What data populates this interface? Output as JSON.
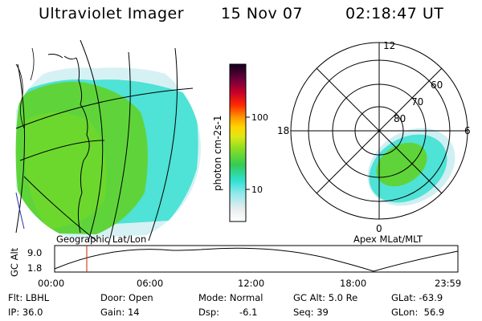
{
  "header": {
    "title": "Ultraviolet Imager",
    "date": "15 Nov 07",
    "time": "02:18:47 UT"
  },
  "colorbar": {
    "unit": "photon cm-2s-1",
    "ticks": [
      "100",
      "10"
    ]
  },
  "left_panel": {
    "label": "Geographic Lat/Lon"
  },
  "right_panel": {
    "label": "Apex MLat/MLT",
    "mlt_labels": {
      "top": "12",
      "left": "18",
      "right": "6",
      "bottom": "0"
    },
    "lat_labels": [
      "60",
      "70",
      "80"
    ]
  },
  "altitude_plot": {
    "ylabel": "GC Alt",
    "yticks": [
      "9.0",
      "1.8"
    ],
    "xticks": [
      "00:00",
      "06:00",
      "12:00",
      "18:00",
      "23:59"
    ]
  },
  "info": {
    "flt": "Flt: LBHL",
    "door": "Door: Open",
    "mode": "Mode: Normal",
    "gc_alt": "GC Alt: 5.0 Re",
    "glat": "GLat: -63.9",
    "ip": "IP: 36.0",
    "gain": "Gain: 14",
    "dsp_label": "Dsp:",
    "dsp_value": "-6.1",
    "seq": "Seq: 39",
    "glon": "GLon:  56.9"
  },
  "colors": {
    "aurora_green": "#58d23a",
    "aurora_cyan": "#3fe0d8",
    "grid": "#000000"
  }
}
